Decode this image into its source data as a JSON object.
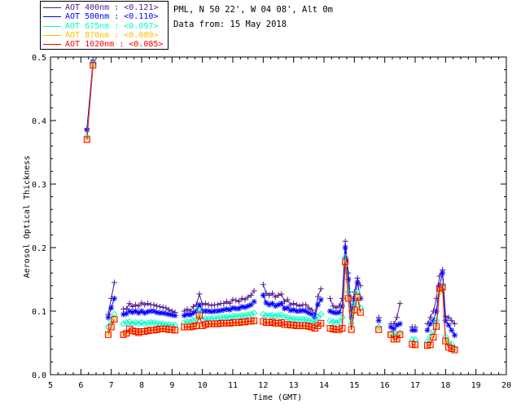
{
  "header": {
    "site": "PML, N 50 22', W 04 08', Alt 0m",
    "date": "Data from: 15 May 2018"
  },
  "chart_data": {
    "type": "line",
    "xlabel": "Time (GMT)",
    "ylabel": "Aerosol Optical Thickness",
    "xlim": [
      5,
      20
    ],
    "ylim": [
      0.0,
      0.5
    ],
    "xticks": [
      "5",
      "6",
      "7",
      "8",
      "9",
      "10",
      "11",
      "12",
      "13",
      "14",
      "15",
      "16",
      "17",
      "18",
      "19",
      "20"
    ],
    "yticks": [
      "0.0",
      "0.1",
      "0.2",
      "0.3",
      "0.4",
      "0.5"
    ],
    "grid": false,
    "legend_position": "top-left",
    "series": [
      {
        "name": "AOT  400nm : <0.121>",
        "color": "#551a8b",
        "marker": "plus",
        "x": [
          6.2,
          6.4,
          6.9,
          7.0,
          7.1,
          7.4,
          7.5,
          7.6,
          7.7,
          7.8,
          7.9,
          8.0,
          8.1,
          8.2,
          8.3,
          8.4,
          8.5,
          8.6,
          8.7,
          8.8,
          8.9,
          9.0,
          9.1,
          9.4,
          9.5,
          9.6,
          9.7,
          9.8,
          9.9,
          10.0,
          10.1,
          10.2,
          10.3,
          10.4,
          10.5,
          10.6,
          10.7,
          10.8,
          10.9,
          11.0,
          11.1,
          11.2,
          11.3,
          11.4,
          11.5,
          11.6,
          11.7,
          12.0,
          12.1,
          12.2,
          12.3,
          12.4,
          12.5,
          12.6,
          12.7,
          12.8,
          12.9,
          13.0,
          13.1,
          13.2,
          13.3,
          13.4,
          13.5,
          13.6,
          13.7,
          13.8,
          13.9,
          14.2,
          14.3,
          14.4,
          14.5,
          14.6,
          14.7,
          14.8,
          14.9,
          15.0,
          15.1,
          15.2,
          15.8,
          16.2,
          16.3,
          16.4,
          16.5,
          16.9,
          17.0,
          17.4,
          17.5,
          17.6,
          17.7,
          17.8,
          17.9,
          18.0,
          18.1,
          18.2,
          18.3
        ],
        "values": [
          0.387,
          0.495,
          0.095,
          0.12,
          0.145,
          0.103,
          0.104,
          0.112,
          0.107,
          0.11,
          0.108,
          0.113,
          0.11,
          0.112,
          0.11,
          0.11,
          0.108,
          0.107,
          0.106,
          0.105,
          0.102,
          0.1,
          0.098,
          0.1,
          0.103,
          0.1,
          0.107,
          0.11,
          0.127,
          0.11,
          0.112,
          0.11,
          0.109,
          0.11,
          0.11,
          0.112,
          0.112,
          0.115,
          0.112,
          0.118,
          0.117,
          0.115,
          0.12,
          0.118,
          0.122,
          0.125,
          0.132,
          0.142,
          0.128,
          0.125,
          0.128,
          0.122,
          0.125,
          0.127,
          0.115,
          0.118,
          0.11,
          0.112,
          0.11,
          0.108,
          0.11,
          0.11,
          0.105,
          0.102,
          0.095,
          0.123,
          0.135,
          0.12,
          0.108,
          0.105,
          0.108,
          0.12,
          0.21,
          0.16,
          0.1,
          0.13,
          0.152,
          0.14,
          0.09,
          0.08,
          0.08,
          0.09,
          0.112,
          0.075,
          0.075,
          0.08,
          0.09,
          0.1,
          0.12,
          0.155,
          0.165,
          0.092,
          0.09,
          0.085,
          0.08
        ],
        "gaps_after": [
          6.4,
          7.1,
          9.1,
          11.7,
          13.9,
          15.2,
          15.8,
          16.5,
          17.0
        ]
      },
      {
        "name": "AOT  500nm : <0.110>",
        "color": "#0000ff",
        "marker": "asterisk",
        "x": [
          6.2,
          6.4,
          6.9,
          7.0,
          7.1,
          7.4,
          7.5,
          7.6,
          7.7,
          7.8,
          7.9,
          8.0,
          8.1,
          8.2,
          8.3,
          8.4,
          8.5,
          8.6,
          8.7,
          8.8,
          8.9,
          9.0,
          9.1,
          9.4,
          9.5,
          9.6,
          9.7,
          9.8,
          9.9,
          10.0,
          10.1,
          10.2,
          10.3,
          10.4,
          10.5,
          10.6,
          10.7,
          10.8,
          10.9,
          11.0,
          11.1,
          11.2,
          11.3,
          11.4,
          11.5,
          11.6,
          11.7,
          12.0,
          12.1,
          12.2,
          12.3,
          12.4,
          12.5,
          12.6,
          12.7,
          12.8,
          12.9,
          13.0,
          13.1,
          13.2,
          13.3,
          13.4,
          13.5,
          13.6,
          13.7,
          13.8,
          13.9,
          14.2,
          14.3,
          14.4,
          14.5,
          14.6,
          14.7,
          14.8,
          14.9,
          15.0,
          15.1,
          15.2,
          15.8,
          16.2,
          16.3,
          16.4,
          16.5,
          16.9,
          17.0,
          17.4,
          17.5,
          17.6,
          17.7,
          17.8,
          17.9,
          18.0,
          18.1,
          18.2,
          18.3
        ],
        "values": [
          0.385,
          0.492,
          0.09,
          0.105,
          0.12,
          0.095,
          0.096,
          0.1,
          0.098,
          0.1,
          0.097,
          0.1,
          0.097,
          0.099,
          0.1,
          0.1,
          0.098,
          0.097,
          0.097,
          0.096,
          0.095,
          0.094,
          0.093,
          0.093,
          0.095,
          0.094,
          0.097,
          0.1,
          0.11,
          0.1,
          0.1,
          0.1,
          0.099,
          0.1,
          0.1,
          0.101,
          0.102,
          0.103,
          0.102,
          0.105,
          0.104,
          0.104,
          0.107,
          0.106,
          0.108,
          0.11,
          0.115,
          0.125,
          0.113,
          0.11,
          0.112,
          0.108,
          0.11,
          0.112,
          0.104,
          0.105,
          0.101,
          0.102,
          0.1,
          0.1,
          0.101,
          0.1,
          0.097,
          0.095,
          0.09,
          0.11,
          0.118,
          0.1,
          0.098,
          0.097,
          0.098,
          0.108,
          0.2,
          0.15,
          0.09,
          0.12,
          0.145,
          0.12,
          0.085,
          0.075,
          0.072,
          0.078,
          0.08,
          0.07,
          0.07,
          0.07,
          0.08,
          0.085,
          0.1,
          0.14,
          0.16,
          0.085,
          0.078,
          0.07,
          0.062
        ],
        "gaps_after": [
          6.4,
          7.1,
          9.1,
          11.7,
          13.9,
          15.2,
          15.8,
          16.5,
          17.0
        ]
      },
      {
        "name": "AOT  675nm : <0.097>",
        "color": "#00ffc0",
        "marker": "diamond",
        "x": [
          6.2,
          6.4,
          6.9,
          7.0,
          7.1,
          7.4,
          7.5,
          7.6,
          7.7,
          7.8,
          7.9,
          8.0,
          8.1,
          8.2,
          8.3,
          8.4,
          8.5,
          8.6,
          8.7,
          8.8,
          8.9,
          9.0,
          9.1,
          9.4,
          9.5,
          9.6,
          9.7,
          9.8,
          9.9,
          10.0,
          10.1,
          10.2,
          10.3,
          10.4,
          10.5,
          10.6,
          10.7,
          10.8,
          10.9,
          11.0,
          11.1,
          11.2,
          11.3,
          11.4,
          11.5,
          11.6,
          11.7,
          12.0,
          12.1,
          12.2,
          12.3,
          12.4,
          12.5,
          12.6,
          12.7,
          12.8,
          12.9,
          13.0,
          13.1,
          13.2,
          13.3,
          13.4,
          13.5,
          13.6,
          13.7,
          13.8,
          13.9,
          14.2,
          14.3,
          14.4,
          14.5,
          14.6,
          14.7,
          14.8,
          14.9,
          15.0,
          15.1,
          15.2,
          15.8,
          16.2,
          16.3,
          16.4,
          16.5,
          16.9,
          17.0,
          17.4,
          17.5,
          17.6,
          17.7,
          17.8,
          17.9,
          18.0,
          18.1,
          18.2,
          18.3
        ],
        "values": [
          0.375,
          0.49,
          0.075,
          0.085,
          0.095,
          0.08,
          0.082,
          0.083,
          0.08,
          0.082,
          0.08,
          0.082,
          0.08,
          0.081,
          0.082,
          0.082,
          0.081,
          0.08,
          0.08,
          0.079,
          0.079,
          0.078,
          0.078,
          0.082,
          0.083,
          0.083,
          0.085,
          0.087,
          0.1,
          0.087,
          0.088,
          0.088,
          0.088,
          0.089,
          0.089,
          0.09,
          0.09,
          0.091,
          0.09,
          0.092,
          0.092,
          0.092,
          0.093,
          0.093,
          0.094,
          0.095,
          0.097,
          0.095,
          0.093,
          0.093,
          0.094,
          0.092,
          0.093,
          0.094,
          0.09,
          0.09,
          0.088,
          0.088,
          0.087,
          0.087,
          0.087,
          0.087,
          0.085,
          0.084,
          0.082,
          0.09,
          0.095,
          0.085,
          0.083,
          0.082,
          0.083,
          0.09,
          0.185,
          0.13,
          0.08,
          0.11,
          0.13,
          0.105,
          0.075,
          0.065,
          0.062,
          0.062,
          0.066,
          0.055,
          0.055,
          0.052,
          0.06,
          0.068,
          0.085,
          0.13,
          0.14,
          0.06,
          0.05,
          0.048,
          0.042
        ],
        "gaps_after": [
          6.4,
          7.1,
          9.1,
          11.7,
          13.9,
          15.2,
          15.8,
          16.5,
          17.0
        ]
      },
      {
        "name": "AOT  870nm : <0.089>",
        "color": "#ffc000",
        "marker": "triangle",
        "x": [
          6.2,
          6.4,
          6.9,
          7.0,
          7.1,
          7.4,
          7.5,
          7.6,
          7.7,
          7.8,
          7.9,
          8.0,
          8.1,
          8.2,
          8.3,
          8.4,
          8.5,
          8.6,
          8.7,
          8.8,
          8.9,
          9.0,
          9.1,
          9.4,
          9.5,
          9.6,
          9.7,
          9.8,
          9.9,
          10.0,
          10.1,
          10.2,
          10.3,
          10.4,
          10.5,
          10.6,
          10.7,
          10.8,
          10.9,
          11.0,
          11.1,
          11.2,
          11.3,
          11.4,
          11.5,
          11.6,
          11.7,
          12.0,
          12.1,
          12.2,
          12.3,
          12.4,
          12.5,
          12.6,
          12.7,
          12.8,
          12.9,
          13.0,
          13.1,
          13.2,
          13.3,
          13.4,
          13.5,
          13.6,
          13.7,
          13.8,
          13.9,
          14.2,
          14.3,
          14.4,
          14.5,
          14.6,
          14.7,
          14.8,
          14.9,
          15.0,
          15.1,
          15.2,
          15.8,
          16.2,
          16.3,
          16.4,
          16.5,
          16.9,
          17.0,
          17.4,
          17.5,
          17.6,
          17.7,
          17.8,
          17.9,
          18.0,
          18.1,
          18.2,
          18.3
        ],
        "values": [
          0.37,
          0.488,
          0.065,
          0.075,
          0.088,
          0.064,
          0.066,
          0.07,
          0.068,
          0.068,
          0.066,
          0.067,
          0.068,
          0.069,
          0.07,
          0.07,
          0.07,
          0.071,
          0.071,
          0.071,
          0.07,
          0.07,
          0.07,
          0.074,
          0.075,
          0.075,
          0.076,
          0.077,
          0.092,
          0.076,
          0.078,
          0.079,
          0.079,
          0.079,
          0.079,
          0.08,
          0.08,
          0.08,
          0.08,
          0.081,
          0.081,
          0.081,
          0.082,
          0.082,
          0.083,
          0.083,
          0.084,
          0.083,
          0.081,
          0.081,
          0.082,
          0.08,
          0.08,
          0.081,
          0.078,
          0.078,
          0.077,
          0.077,
          0.076,
          0.076,
          0.076,
          0.076,
          0.075,
          0.074,
          0.072,
          0.076,
          0.08,
          0.072,
          0.071,
          0.07,
          0.07,
          0.072,
          0.175,
          0.12,
          0.07,
          0.1,
          0.122,
          0.097,
          0.07,
          0.062,
          0.055,
          0.055,
          0.062,
          0.047,
          0.046,
          0.045,
          0.046,
          0.058,
          0.075,
          0.132,
          0.136,
          0.052,
          0.042,
          0.04,
          0.038
        ],
        "gaps_after": [
          6.4,
          7.1,
          9.1,
          11.7,
          13.9,
          15.2,
          15.8,
          16.5,
          17.0
        ]
      },
      {
        "name": "AOT 1020nm : <0.085>",
        "color": "#ff0000",
        "marker": "square",
        "x": [
          6.2,
          6.4,
          6.9,
          7.0,
          7.1,
          7.4,
          7.5,
          7.6,
          7.7,
          7.8,
          7.9,
          8.0,
          8.1,
          8.2,
          8.3,
          8.4,
          8.5,
          8.6,
          8.7,
          8.8,
          8.9,
          9.0,
          9.1,
          9.4,
          9.5,
          9.6,
          9.7,
          9.8,
          9.9,
          10.0,
          10.1,
          10.2,
          10.3,
          10.4,
          10.5,
          10.6,
          10.7,
          10.8,
          10.9,
          11.0,
          11.1,
          11.2,
          11.3,
          11.4,
          11.5,
          11.6,
          11.7,
          12.0,
          12.1,
          12.2,
          12.3,
          12.4,
          12.5,
          12.6,
          12.7,
          12.8,
          12.9,
          13.0,
          13.1,
          13.2,
          13.3,
          13.4,
          13.5,
          13.6,
          13.7,
          13.8,
          13.9,
          14.2,
          14.3,
          14.4,
          14.5,
          14.6,
          14.7,
          14.8,
          14.9,
          15.0,
          15.1,
          15.2,
          15.8,
          16.2,
          16.3,
          16.4,
          16.5,
          16.9,
          17.0,
          17.4,
          17.5,
          17.6,
          17.7,
          17.8,
          17.9,
          18.0,
          18.1,
          18.2,
          18.3
        ],
        "values": [
          0.37,
          0.487,
          0.063,
          0.075,
          0.087,
          0.063,
          0.065,
          0.072,
          0.069,
          0.068,
          0.066,
          0.068,
          0.068,
          0.069,
          0.07,
          0.07,
          0.071,
          0.072,
          0.072,
          0.072,
          0.071,
          0.071,
          0.07,
          0.075,
          0.075,
          0.075,
          0.076,
          0.077,
          0.093,
          0.077,
          0.079,
          0.08,
          0.08,
          0.08,
          0.08,
          0.081,
          0.081,
          0.081,
          0.081,
          0.082,
          0.082,
          0.082,
          0.083,
          0.083,
          0.084,
          0.084,
          0.085,
          0.084,
          0.082,
          0.082,
          0.083,
          0.081,
          0.081,
          0.082,
          0.079,
          0.079,
          0.078,
          0.078,
          0.077,
          0.077,
          0.077,
          0.077,
          0.076,
          0.075,
          0.073,
          0.077,
          0.081,
          0.073,
          0.072,
          0.071,
          0.071,
          0.073,
          0.178,
          0.12,
          0.071,
          0.102,
          0.122,
          0.098,
          0.071,
          0.063,
          0.056,
          0.056,
          0.063,
          0.048,
          0.047,
          0.046,
          0.047,
          0.059,
          0.076,
          0.136,
          0.138,
          0.053,
          0.043,
          0.041,
          0.039
        ],
        "gaps_after": [
          6.4,
          7.1,
          9.1,
          11.7,
          13.9,
          15.2,
          15.8,
          16.5,
          17.0
        ]
      }
    ]
  }
}
